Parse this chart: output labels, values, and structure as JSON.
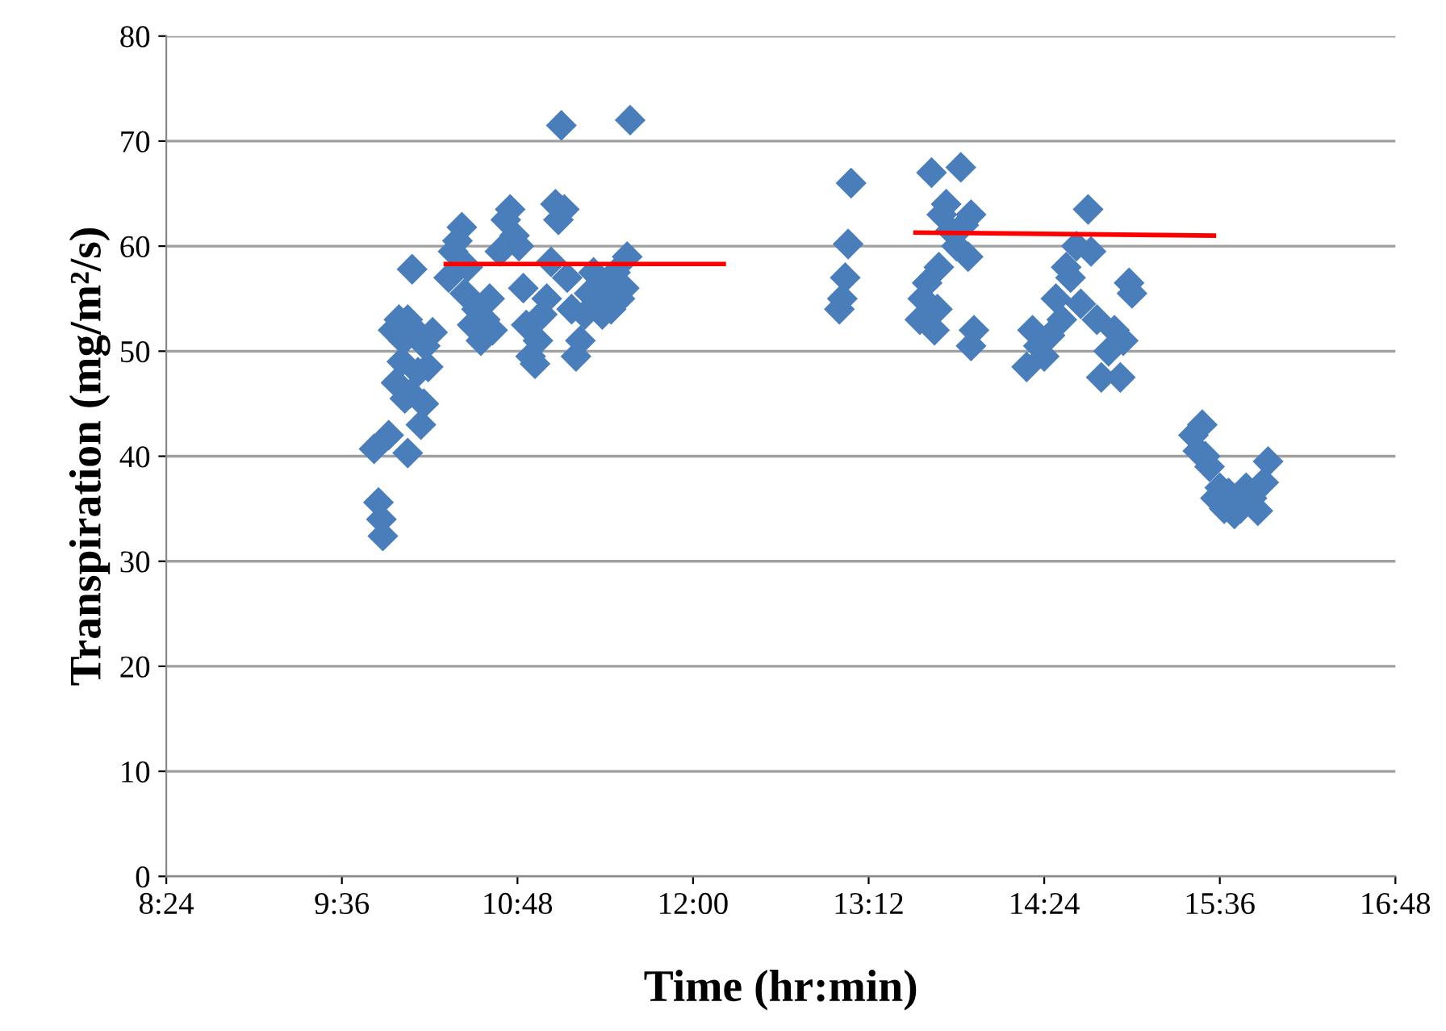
{
  "chart_data": {
    "type": "scatter",
    "xlabel": "Time (hr:min)",
    "ylabel": "Transpiration (mg/m²/s)",
    "marker": "diamond",
    "grid": "y",
    "legend": false,
    "xlim": [
      8.4,
      16.8
    ],
    "xticks": [
      {
        "value": 8.4,
        "label": "8:24"
      },
      {
        "value": 9.6,
        "label": "9:36"
      },
      {
        "value": 10.8,
        "label": "10:48"
      },
      {
        "value": 12.0,
        "label": "12:00"
      },
      {
        "value": 13.2,
        "label": "13:12"
      },
      {
        "value": 14.4,
        "label": "14:24"
      },
      {
        "value": 15.6,
        "label": "15:36"
      },
      {
        "value": 16.8,
        "label": "16:48"
      }
    ],
    "ylim": [
      0,
      80
    ],
    "yticks": [
      0,
      10,
      20,
      30,
      40,
      50,
      60,
      70,
      80
    ],
    "series": [
      {
        "color": "#4a7ebb",
        "x": [
          9.82,
          9.85,
          9.87,
          9.88,
          9.92,
          9.95,
          9.97,
          9.99,
          10.01,
          10.03,
          10.05,
          10.07,
          10.08,
          10.1,
          10.12,
          10.14,
          10.16,
          10.17,
          10.19,
          10.22,
          10.02,
          10.05,
          10.33,
          10.36,
          10.39,
          10.42,
          10.44,
          10.46,
          10.49,
          10.52,
          10.55,
          10.58,
          10.61,
          10.63,
          10.68,
          10.72,
          10.75,
          10.78,
          10.81,
          10.84,
          10.86,
          10.89,
          10.92,
          10.94,
          10.97,
          11.0,
          11.03,
          11.06,
          11.08,
          11.1,
          11.12,
          11.14,
          11.17,
          11.2,
          11.23,
          11.26,
          11.29,
          11.32,
          11.35,
          11.38,
          11.41,
          11.44,
          11.47,
          11.5,
          11.53,
          11.55,
          11.57,
          13.0,
          13.02,
          13.04,
          13.06,
          13.08,
          13.55,
          13.57,
          13.6,
          13.63,
          13.65,
          13.68,
          13.7,
          13.73,
          13.76,
          13.8,
          13.83,
          13.85,
          13.88,
          13.9,
          13.92,
          13.9,
          13.67,
          14.28,
          14.32,
          14.36,
          14.4,
          14.44,
          14.48,
          14.52,
          14.55,
          14.58,
          14.62,
          14.65,
          14.7,
          14.72,
          14.76,
          14.79,
          14.84,
          14.88,
          14.92,
          14.94,
          14.98,
          15.0,
          15.42,
          15.45,
          15.48,
          15.5,
          15.53,
          15.57,
          15.6,
          15.63,
          15.66,
          15.7,
          15.74,
          15.78,
          15.82,
          15.86,
          15.9,
          15.93
        ],
        "values": [
          40.7,
          35.6,
          34,
          32.4,
          42,
          52,
          47,
          53,
          49,
          45.5,
          40.3,
          46,
          57.8,
          52,
          48,
          43,
          45,
          50.5,
          48.5,
          51.8,
          51,
          53,
          57,
          59.5,
          60.5,
          61.8,
          55.5,
          58,
          52.5,
          54,
          51,
          53,
          55,
          52,
          59.5,
          62.5,
          63.5,
          61,
          60,
          56,
          52.5,
          49.5,
          48.8,
          51,
          53.5,
          55,
          58.5,
          64,
          62.5,
          71.5,
          63.5,
          57,
          54,
          49.5,
          51,
          53.5,
          55.5,
          57.5,
          55,
          53.5,
          56,
          54,
          57.5,
          55,
          56,
          59,
          72,
          54,
          55,
          57,
          60.2,
          66,
          53,
          55,
          56.5,
          67,
          52,
          58,
          63,
          64,
          61.5,
          60,
          67.5,
          62,
          59,
          63,
          52,
          50.5,
          54,
          48.5,
          52,
          50.5,
          49.5,
          51.5,
          55,
          53,
          58,
          57,
          60,
          54.5,
          63.5,
          59.5,
          53,
          47.5,
          50,
          52,
          47.5,
          51,
          56.5,
          55.5,
          42,
          40.5,
          43,
          40,
          39,
          36,
          37,
          35,
          36.5,
          34.5,
          35,
          37,
          36,
          34.8,
          37.5,
          39.5
        ]
      },
      {
        "type": "line",
        "color": "#ff0000",
        "marker": "none",
        "x": [
          10.31,
          12.21
        ],
        "values": [
          58.3,
          58.3
        ]
      },
      {
        "type": "line",
        "color": "#ff0000",
        "marker": "none",
        "x": [
          13.52,
          15.56
        ],
        "values": [
          61.3,
          61.0
        ]
      }
    ]
  }
}
